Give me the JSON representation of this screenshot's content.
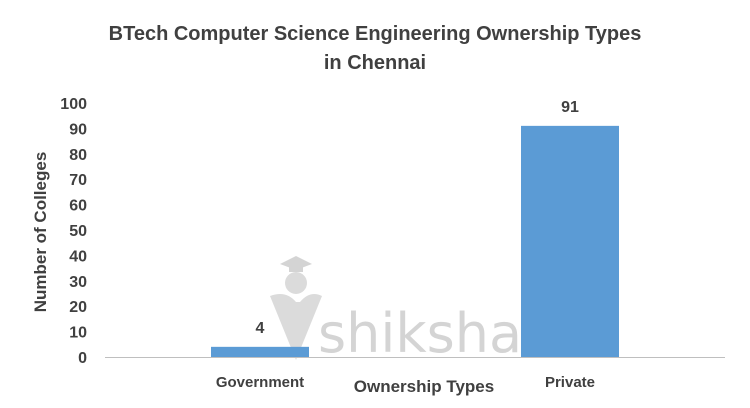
{
  "chart_data": {
    "type": "bar",
    "title_lines": [
      "BTech Computer Science Engineering Ownership Types",
      "in Chennai"
    ],
    "categories": [
      "Government",
      "Private"
    ],
    "values": [
      4,
      91
    ],
    "data_labels": [
      "4",
      "91"
    ],
    "xlabel": "Ownership Types",
    "ylabel": "Number of Colleges",
    "ylim": [
      0,
      100
    ],
    "yticks": [
      "0",
      "10",
      "20",
      "30",
      "40",
      "50",
      "60",
      "70",
      "80",
      "90",
      "100"
    ],
    "grid": false,
    "bar_color": "#5B9BD5",
    "watermark": "shiksha"
  }
}
